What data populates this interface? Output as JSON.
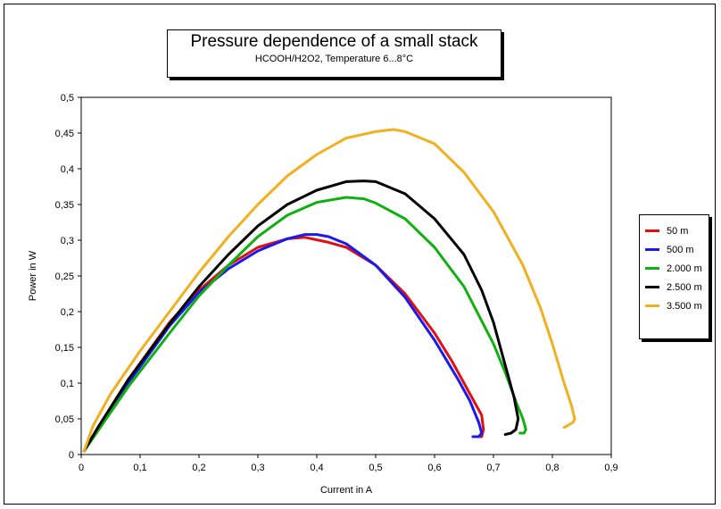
{
  "chart_data": {
    "type": "line",
    "title": "Pressure dependence of a small stack",
    "subtitle": "HCOOH/H2O2, Temperature 6...8°C",
    "xlabel": "Current in A",
    "ylabel": "Power in W",
    "xlim": [
      0,
      0.9
    ],
    "ylim": [
      0,
      0.5
    ],
    "xticks": [
      "0",
      "0,1",
      "0,2",
      "0,3",
      "0,4",
      "0,5",
      "0,6",
      "0,7",
      "0,8",
      "0,9"
    ],
    "yticks": [
      "0",
      "0,05",
      "0,1",
      "0,15",
      "0,2",
      "0,25",
      "0,3",
      "0,35",
      "0,4",
      "0,45",
      "0,5"
    ],
    "grid": false,
    "legend_position": "right",
    "series": [
      {
        "name": "50 m",
        "color": "#e01010",
        "x": [
          0.005,
          0.03,
          0.08,
          0.15,
          0.2,
          0.25,
          0.3,
          0.35,
          0.38,
          0.42,
          0.45,
          0.5,
          0.55,
          0.6,
          0.63,
          0.65,
          0.67,
          0.68,
          0.683,
          0.68,
          0.675
        ],
        "y": [
          0.005,
          0.04,
          0.105,
          0.185,
          0.23,
          0.265,
          0.29,
          0.302,
          0.304,
          0.297,
          0.29,
          0.265,
          0.225,
          0.17,
          0.13,
          0.1,
          0.07,
          0.055,
          0.035,
          0.025,
          0.025
        ]
      },
      {
        "name": "500 m",
        "color": "#1a1aee",
        "x": [
          0.005,
          0.03,
          0.08,
          0.15,
          0.2,
          0.25,
          0.3,
          0.35,
          0.38,
          0.4,
          0.42,
          0.45,
          0.5,
          0.55,
          0.6,
          0.64,
          0.66,
          0.675,
          0.68,
          0.675,
          0.665
        ],
        "y": [
          0.005,
          0.04,
          0.1,
          0.18,
          0.227,
          0.26,
          0.285,
          0.302,
          0.308,
          0.308,
          0.305,
          0.295,
          0.265,
          0.22,
          0.16,
          0.105,
          0.075,
          0.045,
          0.03,
          0.025,
          0.025
        ]
      },
      {
        "name": "2.000 m",
        "color": "#10b010",
        "x": [
          0.005,
          0.03,
          0.08,
          0.15,
          0.2,
          0.25,
          0.3,
          0.35,
          0.4,
          0.45,
          0.48,
          0.5,
          0.55,
          0.6,
          0.65,
          0.7,
          0.72,
          0.74,
          0.75,
          0.755,
          0.752,
          0.745
        ],
        "y": [
          0.005,
          0.035,
          0.095,
          0.17,
          0.222,
          0.265,
          0.305,
          0.335,
          0.353,
          0.36,
          0.358,
          0.352,
          0.33,
          0.29,
          0.235,
          0.155,
          0.115,
          0.07,
          0.05,
          0.035,
          0.03,
          0.03
        ]
      },
      {
        "name": "2.500 m",
        "color": "#000000",
        "x": [
          0.005,
          0.03,
          0.08,
          0.15,
          0.2,
          0.25,
          0.3,
          0.35,
          0.4,
          0.45,
          0.48,
          0.5,
          0.55,
          0.6,
          0.65,
          0.68,
          0.7,
          0.72,
          0.735,
          0.742,
          0.738,
          0.73,
          0.72
        ],
        "y": [
          0.005,
          0.04,
          0.105,
          0.183,
          0.235,
          0.28,
          0.32,
          0.35,
          0.37,
          0.382,
          0.383,
          0.382,
          0.365,
          0.33,
          0.28,
          0.23,
          0.185,
          0.125,
          0.08,
          0.05,
          0.035,
          0.03,
          0.028
        ]
      },
      {
        "name": "3.500 m",
        "color": "#f0b020",
        "x": [
          0.005,
          0.02,
          0.05,
          0.1,
          0.15,
          0.2,
          0.25,
          0.3,
          0.35,
          0.4,
          0.45,
          0.5,
          0.53,
          0.55,
          0.6,
          0.65,
          0.7,
          0.75,
          0.78,
          0.8,
          0.82,
          0.832,
          0.838,
          0.835,
          0.825,
          0.82
        ],
        "y": [
          0.005,
          0.04,
          0.085,
          0.145,
          0.2,
          0.255,
          0.305,
          0.35,
          0.39,
          0.42,
          0.443,
          0.452,
          0.455,
          0.452,
          0.435,
          0.395,
          0.34,
          0.265,
          0.205,
          0.155,
          0.1,
          0.07,
          0.05,
          0.045,
          0.04,
          0.038
        ]
      }
    ]
  }
}
